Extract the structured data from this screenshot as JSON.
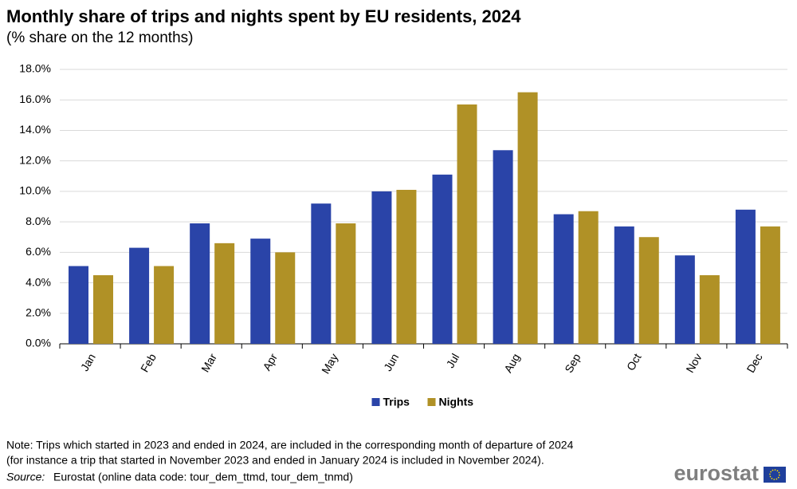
{
  "chart_data": {
    "type": "bar",
    "title": "Monthly share of trips and nights spent by EU residents, 2024",
    "subtitle": "(% share on the 12 months)",
    "categories": [
      "Jan",
      "Feb",
      "Mar",
      "Apr",
      "May",
      "Jun",
      "Jul",
      "Aug",
      "Sep",
      "Oct",
      "Nov",
      "Dec"
    ],
    "series": [
      {
        "name": "Trips",
        "color": "#2a44a8",
        "values": [
          5.1,
          6.3,
          7.9,
          6.9,
          9.2,
          10.0,
          11.1,
          12.7,
          8.5,
          7.7,
          5.8,
          8.8
        ]
      },
      {
        "name": "Nights",
        "color": "#b09126",
        "values": [
          4.5,
          5.1,
          6.6,
          6.0,
          7.9,
          10.1,
          15.7,
          16.5,
          8.7,
          7.0,
          4.5,
          7.7
        ]
      }
    ],
    "ylim": [
      0,
      18
    ],
    "yticks": [
      {
        "value": 0,
        "label": "0.0%"
      },
      {
        "value": 2,
        "label": "2.0%"
      },
      {
        "value": 4,
        "label": "4.0%"
      },
      {
        "value": 6,
        "label": "6.0%"
      },
      {
        "value": 8,
        "label": "8.0%"
      },
      {
        "value": 10,
        "label": "10.0%"
      },
      {
        "value": 12,
        "label": "12.0%"
      },
      {
        "value": 14,
        "label": "14.0%"
      },
      {
        "value": 16,
        "label": "16.0%"
      },
      {
        "value": 18,
        "label": "18.0%"
      }
    ],
    "grid": true,
    "legend": "bottom",
    "note": [
      "Note: Trips which started in 2023 and ended in 2024, are included in the corresponding month of departure of 2024",
      "(for instance a trip that started in November 2023 and ended in January 2024 is included in November 2024)."
    ],
    "source_label": "Source:",
    "source": "Eurostat (online data code: tour_dem_ttmd, tour_dem_tnmd)",
    "logo": "eurostat"
  }
}
